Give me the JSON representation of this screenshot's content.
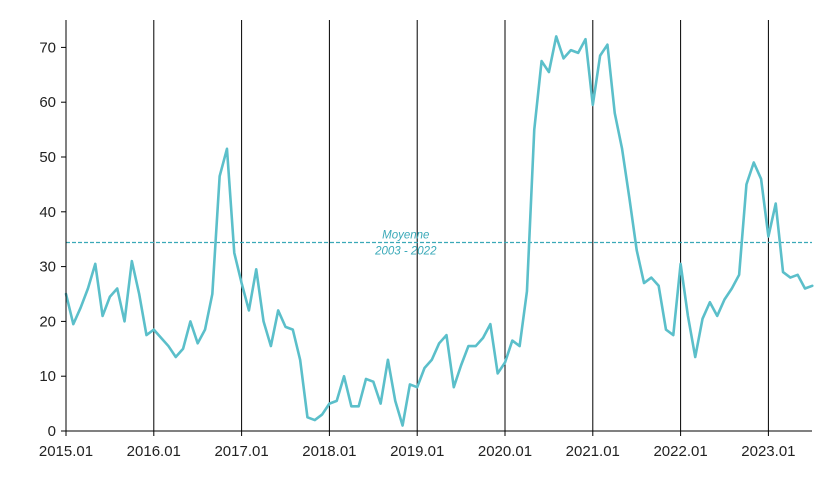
{
  "chart_data": {
    "type": "line",
    "title": "",
    "xlabel": "",
    "ylabel": "",
    "x_ticks": [
      "2015.01",
      "2016.01",
      "2017.01",
      "2018.01",
      "2019.01",
      "2020.01",
      "2021.01",
      "2022.01",
      "2023.01"
    ],
    "y_ticks": [
      "0",
      "10",
      "20",
      "30",
      "40",
      "50",
      "60",
      "70"
    ],
    "xlim": [
      "2015-01",
      "2023-06"
    ],
    "ylim": [
      0,
      75
    ],
    "grid": "vertical lines at each January",
    "colors": {
      "series": "#5bbfca",
      "average": "#3aa9b8",
      "grid": "#000000",
      "axis": "#000000"
    },
    "average": {
      "value": 34.4,
      "label_line1": "Moyenne",
      "label_line2": "2003 - 2022"
    },
    "series": [
      {
        "points": [
          [
            "2015-01",
            25.0
          ],
          [
            "2015-02",
            19.5
          ],
          [
            "2015-03",
            22.5
          ],
          [
            "2015-04",
            26.0
          ],
          [
            "2015-05",
            30.5
          ],
          [
            "2015-06",
            21.0
          ],
          [
            "2015-07",
            24.5
          ],
          [
            "2015-08",
            26.0
          ],
          [
            "2015-09",
            20.0
          ],
          [
            "2015-10",
            31.0
          ],
          [
            "2015-11",
            25.0
          ],
          [
            "2015-12",
            17.5
          ],
          [
            "2016-01",
            18.5
          ],
          [
            "2016-02",
            17.0
          ],
          [
            "2016-03",
            15.5
          ],
          [
            "2016-04",
            13.5
          ],
          [
            "2016-05",
            15.0
          ],
          [
            "2016-06",
            20.0
          ],
          [
            "2016-07",
            16.0
          ],
          [
            "2016-08",
            18.5
          ],
          [
            "2016-09",
            25.0
          ],
          [
            "2016-10",
            46.5
          ],
          [
            "2016-11",
            51.5
          ],
          [
            "2016-12",
            32.5
          ],
          [
            "2017-01",
            27.0
          ],
          [
            "2017-02",
            22.0
          ],
          [
            "2017-03",
            29.5
          ],
          [
            "2017-04",
            20.0
          ],
          [
            "2017-05",
            15.5
          ],
          [
            "2017-06",
            22.0
          ],
          [
            "2017-07",
            19.0
          ],
          [
            "2017-08",
            18.5
          ],
          [
            "2017-09",
            13.0
          ],
          [
            "2017-10",
            2.5
          ],
          [
            "2017-11",
            2.0
          ],
          [
            "2017-12",
            3.0
          ],
          [
            "2018-01",
            5.0
          ],
          [
            "2018-02",
            5.5
          ],
          [
            "2018-03",
            10.0
          ],
          [
            "2018-04",
            4.5
          ],
          [
            "2018-05",
            4.5
          ],
          [
            "2018-06",
            9.5
          ],
          [
            "2018-07",
            9.0
          ],
          [
            "2018-08",
            5.0
          ],
          [
            "2018-09",
            13.0
          ],
          [
            "2018-10",
            5.5
          ],
          [
            "2018-11",
            1.0
          ],
          [
            "2018-12",
            8.5
          ],
          [
            "2019-01",
            8.0
          ],
          [
            "2019-02",
            11.5
          ],
          [
            "2019-03",
            13.0
          ],
          [
            "2019-04",
            16.0
          ],
          [
            "2019-05",
            17.5
          ],
          [
            "2019-06",
            8.0
          ],
          [
            "2019-07",
            12.0
          ],
          [
            "2019-08",
            15.5
          ],
          [
            "2019-09",
            15.5
          ],
          [
            "2019-10",
            17.0
          ],
          [
            "2019-11",
            19.5
          ],
          [
            "2019-12",
            10.5
          ],
          [
            "2020-01",
            12.5
          ],
          [
            "2020-02",
            16.5
          ],
          [
            "2020-03",
            15.5
          ],
          [
            "2020-04",
            25.5
          ],
          [
            "2020-05",
            55.0
          ],
          [
            "2020-06",
            67.5
          ],
          [
            "2020-07",
            65.5
          ],
          [
            "2020-08",
            72.0
          ],
          [
            "2020-09",
            68.0
          ],
          [
            "2020-10",
            69.5
          ],
          [
            "2020-11",
            69.0
          ],
          [
            "2020-12",
            71.5
          ],
          [
            "2021-01",
            59.5
          ],
          [
            "2021-02",
            68.5
          ],
          [
            "2021-03",
            70.5
          ],
          [
            "2021-04",
            58.0
          ],
          [
            "2021-05",
            51.5
          ],
          [
            "2021-06",
            42.5
          ],
          [
            "2021-07",
            33.0
          ],
          [
            "2021-08",
            27.0
          ],
          [
            "2021-09",
            28.0
          ],
          [
            "2021-10",
            26.5
          ],
          [
            "2021-11",
            18.5
          ],
          [
            "2021-12",
            17.5
          ],
          [
            "2022-01",
            30.5
          ],
          [
            "2022-02",
            21.0
          ],
          [
            "2022-03",
            13.5
          ],
          [
            "2022-04",
            20.5
          ],
          [
            "2022-05",
            23.5
          ],
          [
            "2022-06",
            21.0
          ],
          [
            "2022-07",
            24.0
          ],
          [
            "2022-08",
            26.0
          ],
          [
            "2022-09",
            28.5
          ],
          [
            "2022-10",
            45.0
          ],
          [
            "2022-11",
            49.0
          ],
          [
            "2022-12",
            46.0
          ],
          [
            "2023-01",
            35.5
          ],
          [
            "2023-02",
            41.5
          ],
          [
            "2023-03",
            29.0
          ],
          [
            "2023-04",
            28.0
          ],
          [
            "2023-05",
            28.5
          ],
          [
            "2023-06",
            26.0
          ],
          [
            "2023-07",
            26.5
          ]
        ]
      }
    ]
  }
}
